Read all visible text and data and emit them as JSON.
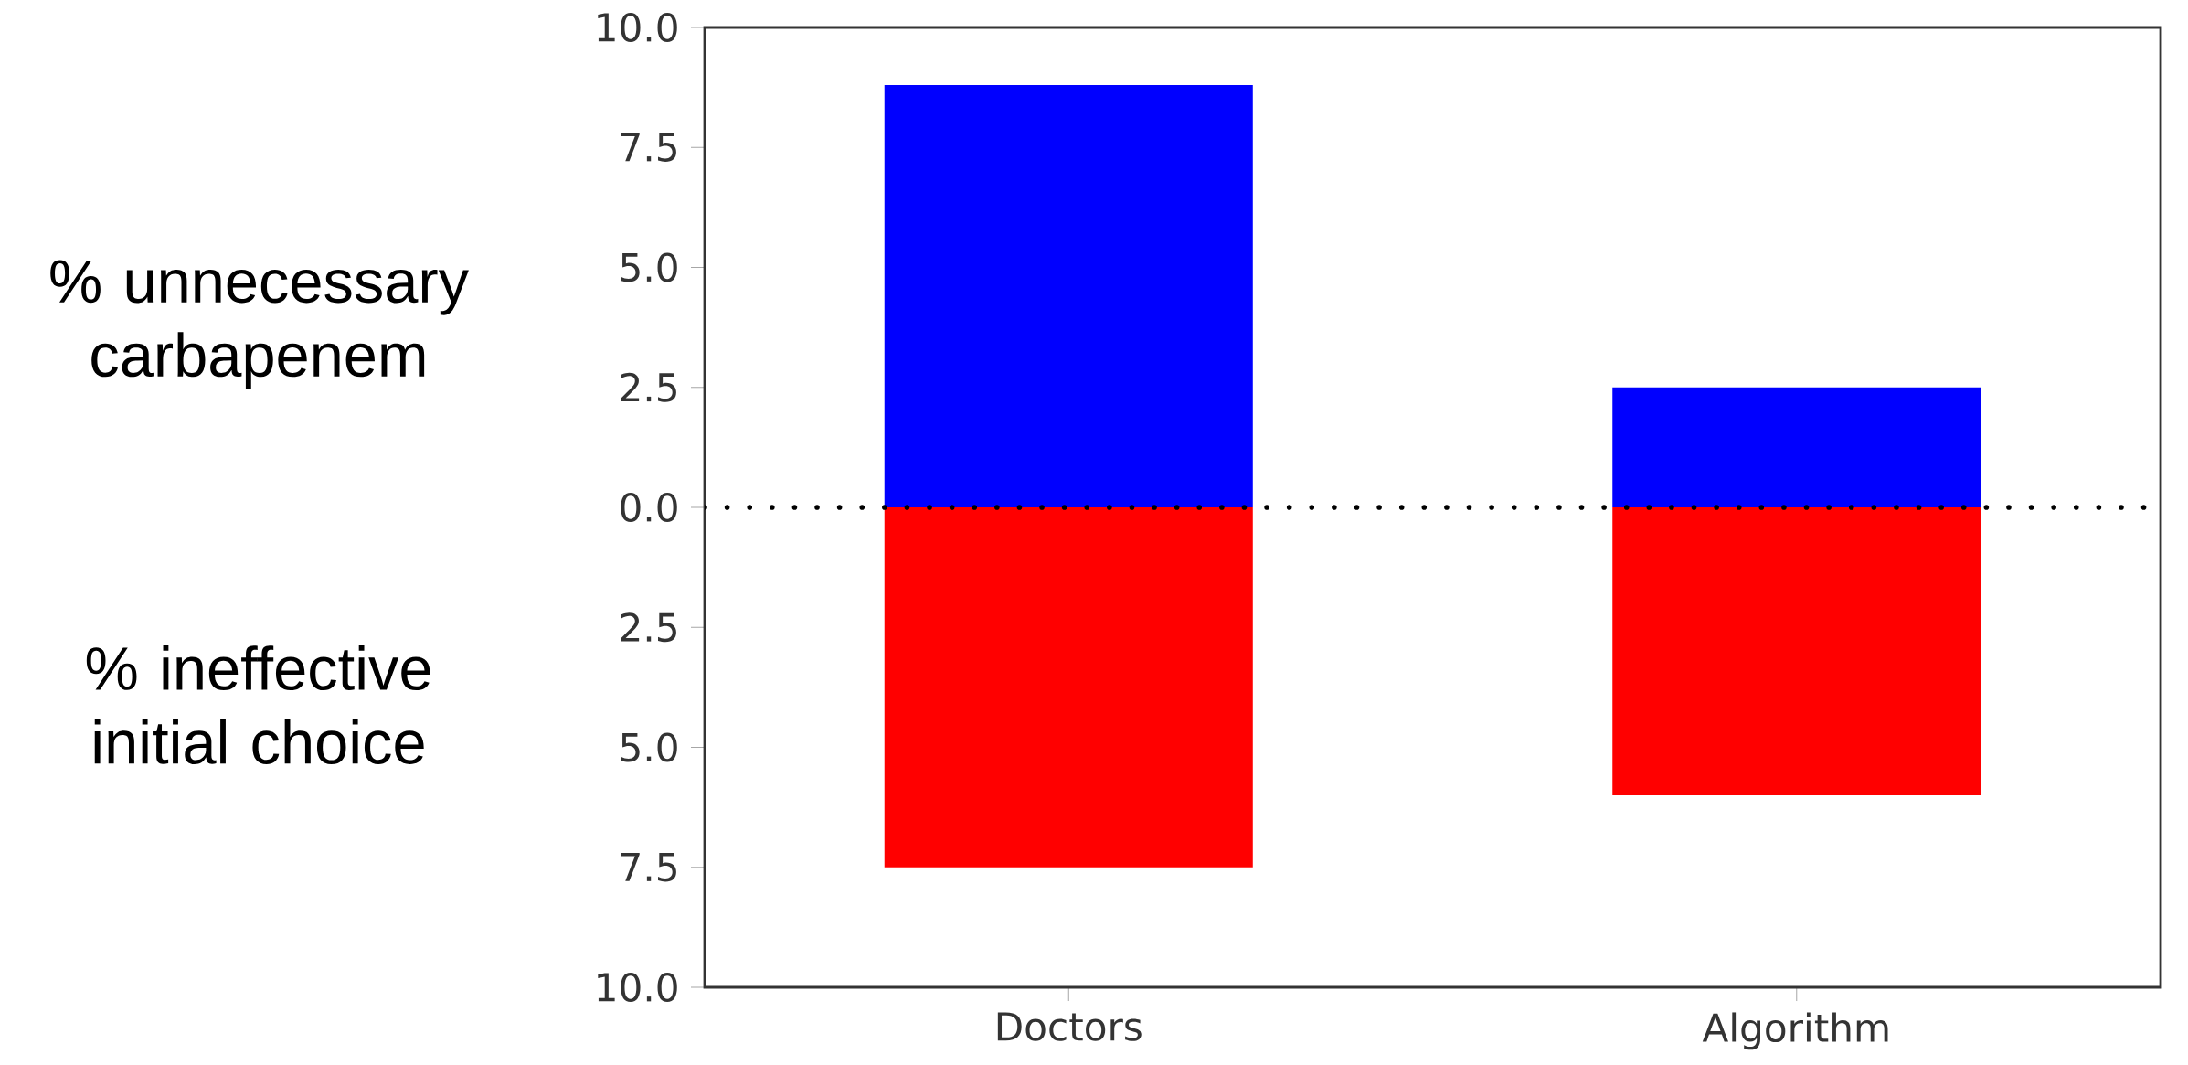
{
  "chart_data": {
    "type": "bar",
    "categories": [
      "Doctors",
      "Algorithm"
    ],
    "series": [
      {
        "color": "#0000ff",
        "values": [
          8.8,
          2.5
        ]
      },
      {
        "color": "#ff0000",
        "values": [
          -7.5,
          -6.0
        ]
      }
    ],
    "stacked": true,
    "ylim": [
      -10,
      10
    ],
    "yticks": [
      {
        "value": -10,
        "label": "10.0"
      },
      {
        "value": -7.5,
        "label": "7.5"
      },
      {
        "value": -5,
        "label": "5.0"
      },
      {
        "value": -2.5,
        "label": "2.5"
      },
      {
        "value": 0,
        "label": "0.0"
      },
      {
        "value": 2.5,
        "label": "2.5"
      },
      {
        "value": 5,
        "label": "5.0"
      },
      {
        "value": 7.5,
        "label": "7.5"
      },
      {
        "value": 10,
        "label": "10.0"
      }
    ],
    "ref_lines": [
      {
        "axis": "y",
        "value": 0,
        "color": "#000000",
        "line_style": "dotted"
      }
    ],
    "annotations": [
      "% unnecessary carbapenem",
      "% ineffective initial choice"
    ],
    "grid": false
  }
}
